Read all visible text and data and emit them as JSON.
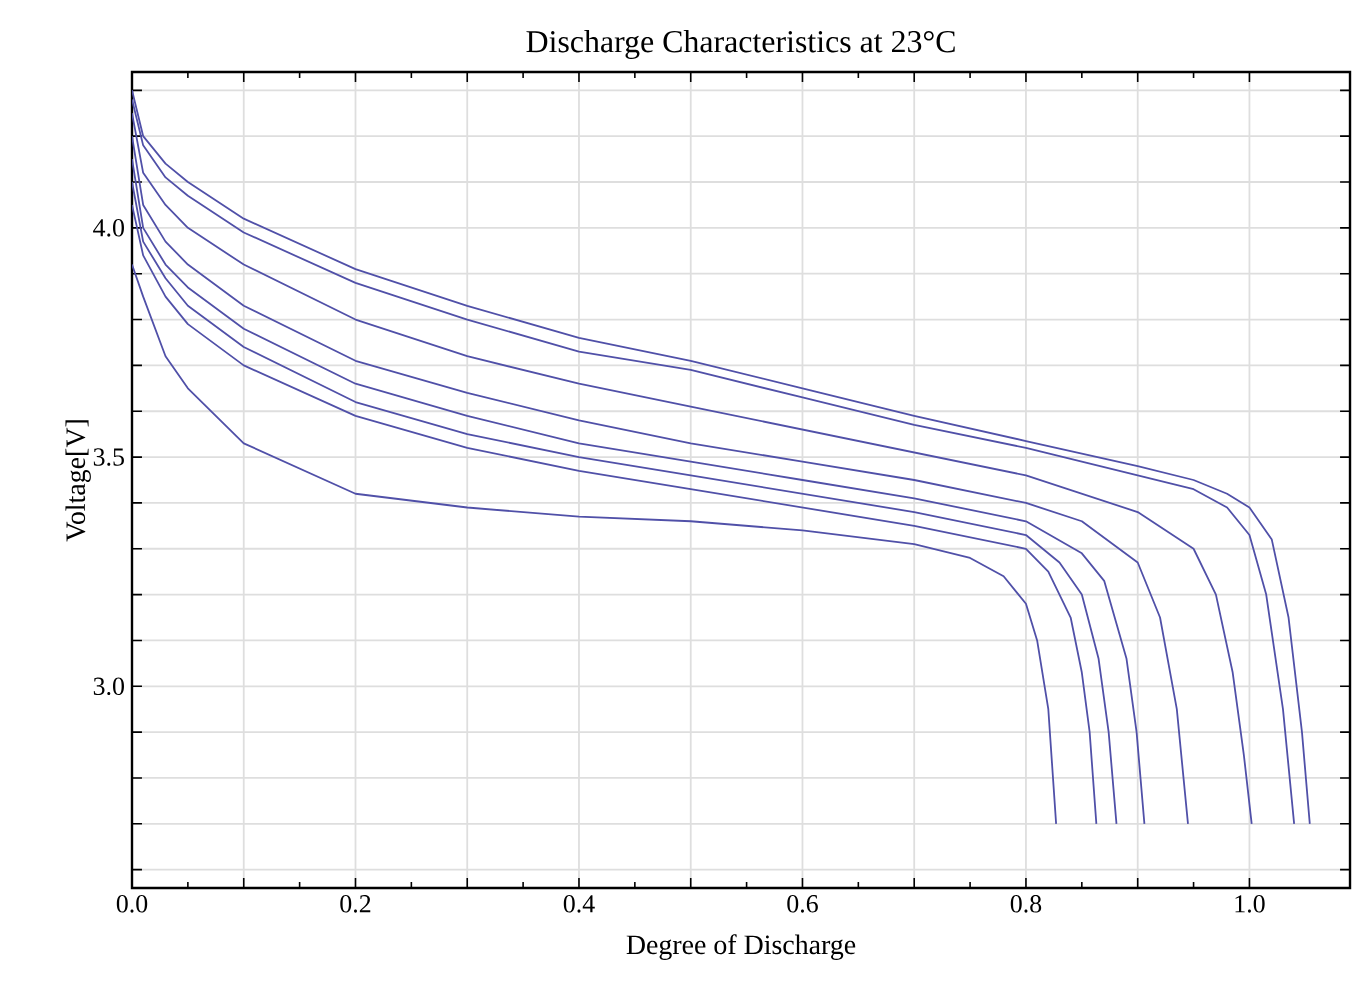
{
  "chart_data": {
    "type": "line",
    "title": "Discharge Characteristics at 23°C",
    "xlabel": "Degree of Discharge",
    "ylabel": "Voltage[V]",
    "xlim": [
      0,
      1.09
    ],
    "ylim": [
      2.56,
      4.34
    ],
    "xticks": [
      {
        "value": 0,
        "label": "0.0"
      },
      {
        "value": 0.1,
        "label": null
      },
      {
        "value": 0.2,
        "label": "0.2"
      },
      {
        "value": 0.3,
        "label": null
      },
      {
        "value": 0.4,
        "label": "0.4"
      },
      {
        "value": 0.5,
        "label": null
      },
      {
        "value": 0.6,
        "label": "0.6"
      },
      {
        "value": 0.7,
        "label": null
      },
      {
        "value": 0.8,
        "label": "0.8"
      },
      {
        "value": 0.9,
        "label": null
      },
      {
        "value": 1.0,
        "label": "1.0"
      }
    ],
    "yticks": [
      {
        "value": 2.6,
        "label": null
      },
      {
        "value": 2.7,
        "label": null
      },
      {
        "value": 2.8,
        "label": null
      },
      {
        "value": 2.9,
        "label": null
      },
      {
        "value": 3.0,
        "label": "3.0"
      },
      {
        "value": 3.1,
        "label": null
      },
      {
        "value": 3.2,
        "label": null
      },
      {
        "value": 3.3,
        "label": null
      },
      {
        "value": 3.4,
        "label": null
      },
      {
        "value": 3.5,
        "label": "3.5"
      },
      {
        "value": 3.6,
        "label": null
      },
      {
        "value": 3.7,
        "label": null
      },
      {
        "value": 3.8,
        "label": null
      },
      {
        "value": 3.9,
        "label": null
      },
      {
        "value": 4.0,
        "label": "4.0"
      },
      {
        "value": 4.1,
        "label": null
      },
      {
        "value": 4.2,
        "label": null
      },
      {
        "value": 4.3,
        "label": null
      }
    ],
    "grid": true,
    "marker": "none",
    "line_style": "solid",
    "series": [
      {
        "color": "#5050a8",
        "x": [
          0,
          0.01,
          0.03,
          0.05,
          0.1,
          0.2,
          0.3,
          0.4,
          0.5,
          0.6,
          0.7,
          0.8,
          0.9,
          0.95,
          0.98,
          1.0,
          1.02,
          1.035,
          1.047,
          1.054
        ],
        "values": [
          4.3,
          4.2,
          4.14,
          4.1,
          4.02,
          3.91,
          3.83,
          3.76,
          3.71,
          3.65,
          3.59,
          3.535,
          3.48,
          3.45,
          3.42,
          3.39,
          3.32,
          3.15,
          2.9,
          2.7
        ]
      },
      {
        "color": "#5050a8",
        "x": [
          0,
          0.01,
          0.03,
          0.05,
          0.1,
          0.2,
          0.3,
          0.4,
          0.5,
          0.6,
          0.7,
          0.8,
          0.9,
          0.95,
          0.98,
          1.0,
          1.015,
          1.03,
          1.04
        ],
        "values": [
          4.28,
          4.18,
          4.11,
          4.07,
          3.99,
          3.88,
          3.8,
          3.73,
          3.69,
          3.63,
          3.57,
          3.52,
          3.46,
          3.43,
          3.39,
          3.33,
          3.2,
          2.95,
          2.7
        ]
      },
      {
        "color": "#5050a8",
        "x": [
          0,
          0.01,
          0.03,
          0.05,
          0.1,
          0.2,
          0.3,
          0.4,
          0.5,
          0.6,
          0.7,
          0.8,
          0.9,
          0.95,
          0.97,
          0.985,
          0.995,
          1.002
        ],
        "values": [
          4.25,
          4.12,
          4.05,
          4.0,
          3.92,
          3.8,
          3.72,
          3.66,
          3.61,
          3.56,
          3.51,
          3.46,
          3.38,
          3.3,
          3.2,
          3.03,
          2.85,
          2.7
        ]
      },
      {
        "color": "#5050a8",
        "x": [
          0,
          0.01,
          0.03,
          0.05,
          0.1,
          0.2,
          0.3,
          0.4,
          0.5,
          0.6,
          0.7,
          0.8,
          0.85,
          0.9,
          0.92,
          0.935,
          0.945
        ],
        "values": [
          4.2,
          4.05,
          3.97,
          3.92,
          3.83,
          3.71,
          3.64,
          3.58,
          3.53,
          3.49,
          3.45,
          3.4,
          3.36,
          3.27,
          3.15,
          2.95,
          2.7
        ]
      },
      {
        "color": "#5050a8",
        "x": [
          0,
          0.01,
          0.03,
          0.05,
          0.1,
          0.2,
          0.3,
          0.4,
          0.5,
          0.6,
          0.7,
          0.8,
          0.85,
          0.87,
          0.89,
          0.899,
          0.906
        ],
        "values": [
          4.15,
          4.0,
          3.92,
          3.87,
          3.78,
          3.66,
          3.59,
          3.53,
          3.49,
          3.45,
          3.41,
          3.36,
          3.29,
          3.23,
          3.06,
          2.9,
          2.7
        ]
      },
      {
        "color": "#5050a8",
        "x": [
          0,
          0.01,
          0.03,
          0.05,
          0.1,
          0.2,
          0.3,
          0.4,
          0.5,
          0.6,
          0.7,
          0.8,
          0.83,
          0.85,
          0.865,
          0.874,
          0.881
        ],
        "values": [
          4.1,
          3.97,
          3.89,
          3.83,
          3.74,
          3.62,
          3.55,
          3.5,
          3.46,
          3.42,
          3.38,
          3.33,
          3.27,
          3.2,
          3.06,
          2.9,
          2.7
        ]
      },
      {
        "color": "#5050a8",
        "x": [
          0,
          0.01,
          0.03,
          0.05,
          0.1,
          0.2,
          0.3,
          0.4,
          0.5,
          0.6,
          0.7,
          0.8,
          0.82,
          0.84,
          0.85,
          0.857,
          0.863
        ],
        "values": [
          4.05,
          3.94,
          3.85,
          3.79,
          3.7,
          3.59,
          3.52,
          3.47,
          3.43,
          3.39,
          3.35,
          3.3,
          3.25,
          3.15,
          3.03,
          2.9,
          2.7
        ]
      },
      {
        "color": "#5050a8",
        "x": [
          0,
          0.01,
          0.03,
          0.05,
          0.1,
          0.2,
          0.3,
          0.4,
          0.5,
          0.6,
          0.7,
          0.75,
          0.78,
          0.8,
          0.81,
          0.82,
          0.827
        ],
        "values": [
          3.92,
          3.85,
          3.72,
          3.65,
          3.53,
          3.42,
          3.39,
          3.37,
          3.36,
          3.34,
          3.31,
          3.28,
          3.24,
          3.18,
          3.1,
          2.95,
          2.7
        ]
      }
    ]
  }
}
